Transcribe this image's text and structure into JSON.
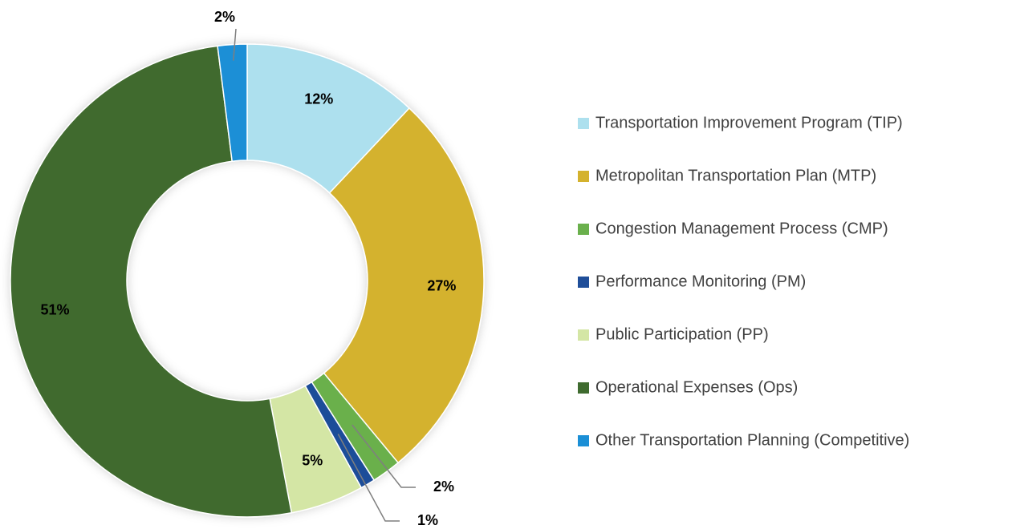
{
  "chart_data": {
    "type": "donut",
    "categories": [
      "Transportation Improvement Program (TIP)",
      "Metropolitan Transportation Plan (MTP)",
      "Congestion Management Process (CMP)",
      "Performance Monitoring (PM)",
      "Public Participation (PP)",
      "Operational Expenses (Ops)",
      "Other Transportation Planning (Competitive)"
    ],
    "values": [
      12,
      27,
      2,
      1,
      5,
      51,
      2
    ],
    "value_labels": [
      "12%",
      "27%",
      "2%",
      "1%",
      "5%",
      "51%",
      "2%"
    ],
    "colors": [
      "#ade0ee",
      "#d4b22e",
      "#6ab04c",
      "#1f4e99",
      "#d4e6a5",
      "#3f6b2f",
      "#1b8fd6"
    ],
    "legend": "right"
  }
}
